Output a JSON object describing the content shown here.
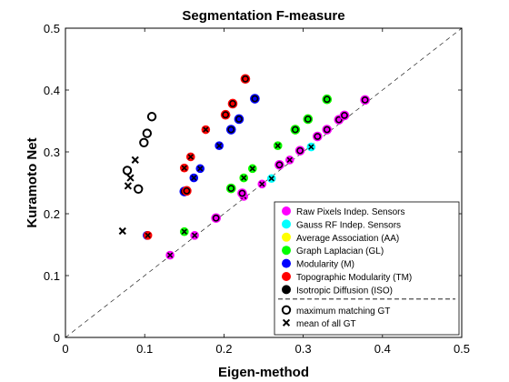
{
  "chart_data": {
    "type": "scatter",
    "title": "Segmentation F-measure",
    "xlabel": "Eigen-method",
    "ylabel": "Kuramoto Net",
    "xlim": [
      0,
      0.5
    ],
    "ylim": [
      0,
      0.5
    ],
    "xticks": [
      "0",
      "0.1",
      "0.2",
      "0.3",
      "0.4",
      "0.5"
    ],
    "yticks": [
      "0",
      "0.1",
      "0.2",
      "0.3",
      "0.4",
      "0.5"
    ],
    "grid": false,
    "reference_line": "y = x (dashed)",
    "legend_position": "bottom-right",
    "marker_types": [
      {
        "marker": "circle",
        "label": "maximum matching GT"
      },
      {
        "marker": "x",
        "label": "mean of all GT"
      }
    ],
    "series": [
      {
        "name": "Raw Pixels Indep. Sensors",
        "color": "#ff00ff",
        "max": [
          [
            0.19,
            0.193
          ],
          [
            0.223,
            0.233
          ],
          [
            0.27,
            0.279
          ],
          [
            0.296,
            0.302
          ],
          [
            0.318,
            0.325
          ],
          [
            0.33,
            0.336
          ],
          [
            0.345,
            0.352
          ],
          [
            0.352,
            0.359
          ],
          [
            0.378,
            0.384
          ]
        ],
        "mean": [
          [
            0.132,
            0.133
          ],
          [
            0.163,
            0.165
          ],
          [
            0.225,
            0.228
          ],
          [
            0.248,
            0.248
          ],
          [
            0.283,
            0.287
          ]
        ]
      },
      {
        "name": "Gauss RF Indep. Sensors",
        "color": "#00ffff",
        "max": [],
        "mean": [
          [
            0.26,
            0.257
          ],
          [
            0.31,
            0.308
          ]
        ]
      },
      {
        "name": "Average Association (AA)",
        "color": "#ffff00",
        "max": [
          [
            0.209,
            0.241
          ],
          [
            0.29,
            0.336
          ],
          [
            0.306,
            0.353
          ],
          [
            0.33,
            0.385
          ]
        ],
        "mean": [
          [
            0.15,
            0.171
          ],
          [
            0.225,
            0.258
          ],
          [
            0.236,
            0.273
          ],
          [
            0.268,
            0.31
          ]
        ]
      },
      {
        "name": "Graph Laplacian (GL)",
        "color": "#00ff00",
        "max": [
          [
            0.209,
            0.241
          ],
          [
            0.29,
            0.336
          ],
          [
            0.306,
            0.353
          ],
          [
            0.33,
            0.385
          ]
        ],
        "mean": [
          [
            0.15,
            0.171
          ],
          [
            0.225,
            0.258
          ],
          [
            0.236,
            0.273
          ],
          [
            0.268,
            0.31
          ]
        ]
      },
      {
        "name": "Modularity (M)",
        "color": "#0000ff",
        "max": [
          [
            0.15,
            0.236
          ],
          [
            0.209,
            0.336
          ],
          [
            0.219,
            0.353
          ],
          [
            0.239,
            0.386
          ]
        ],
        "mean": [
          [
            0.103,
            0.165
          ],
          [
            0.162,
            0.258
          ],
          [
            0.17,
            0.273
          ],
          [
            0.194,
            0.31
          ]
        ]
      },
      {
        "name": "Topographic Modularity (TM)",
        "color": "#ff0000",
        "max": [
          [
            0.153,
            0.237
          ],
          [
            0.202,
            0.36
          ],
          [
            0.211,
            0.378
          ],
          [
            0.227,
            0.418
          ]
        ],
        "mean": [
          [
            0.104,
            0.165
          ],
          [
            0.15,
            0.274
          ],
          [
            0.158,
            0.292
          ],
          [
            0.177,
            0.336
          ]
        ]
      },
      {
        "name": "Isotropic Diffusion (ISO)",
        "color": "#000000",
        "max": [
          [
            0.078,
            0.27
          ],
          [
            0.092,
            0.24
          ],
          [
            0.099,
            0.315
          ],
          [
            0.103,
            0.33
          ],
          [
            0.109,
            0.357
          ]
        ],
        "mean": [
          [
            0.072,
            0.172
          ],
          [
            0.079,
            0.245
          ],
          [
            0.082,
            0.258
          ],
          [
            0.088,
            0.287
          ]
        ]
      }
    ]
  }
}
